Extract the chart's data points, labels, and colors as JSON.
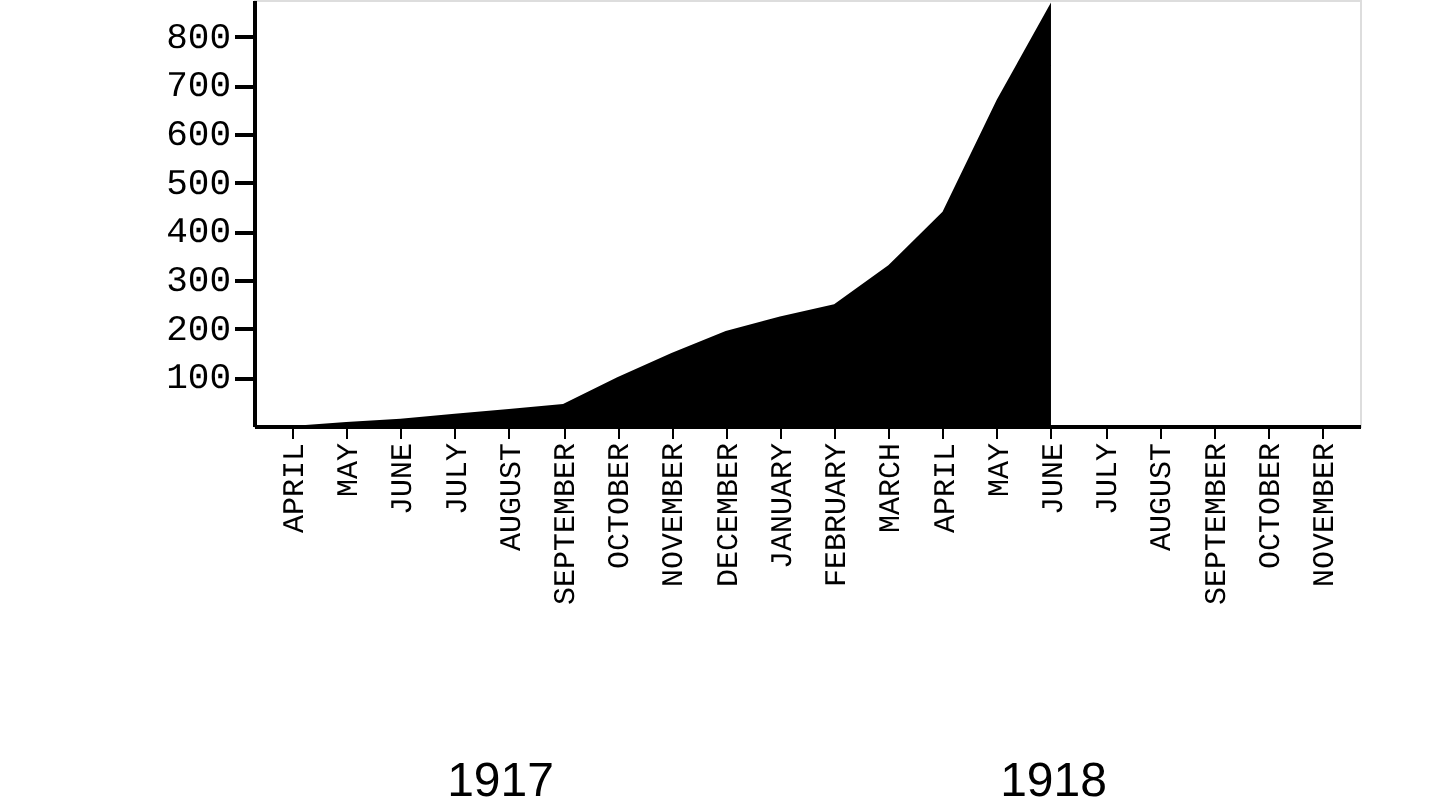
{
  "chart_data": {
    "type": "area",
    "categories": [
      "APRIL",
      "MAY",
      "JUNE",
      "JULY",
      "AUGUST",
      "SEPTEMBER",
      "OCTOBER",
      "NOVEMBER",
      "DECEMBER",
      "JANUARY",
      "FEBRUARY",
      "MARCH",
      "APRIL",
      "MAY",
      "JUNE",
      "JULY",
      "AUGUST",
      "SEPTEMBER",
      "OCTOBER",
      "NOVEMBER"
    ],
    "series": [
      {
        "color": "#000000",
        "values": [
          0,
          8,
          15,
          25,
          35,
          45,
          100,
          150,
          195,
          225,
          250,
          330,
          440,
          670,
          870,
          null,
          null,
          null,
          null,
          null
        ]
      }
    ],
    "annotations": [
      "1917",
      "1918"
    ],
    "ylim": [
      0,
      875
    ],
    "yticks": [
      100,
      200,
      300,
      400,
      500,
      600,
      700,
      800
    ],
    "grid": false
  }
}
